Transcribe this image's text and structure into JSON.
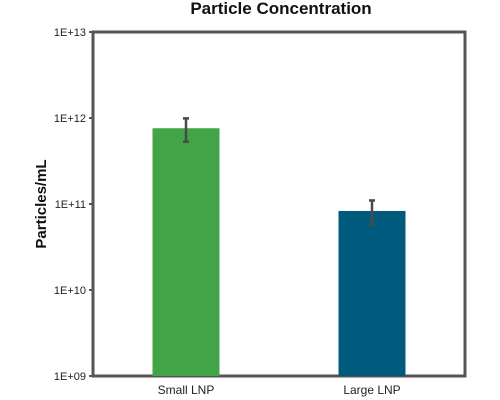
{
  "chart_data": {
    "type": "bar",
    "title": "Particle Concentration",
    "xlabel": "",
    "ylabel": "Particles/mL",
    "yscale": "log",
    "ylim": [
      1000000000,
      10000000000000
    ],
    "yticks": [
      {
        "value": 1000000000,
        "label": "1E+09"
      },
      {
        "value": 10000000000,
        "label": "1E+10"
      },
      {
        "value": 100000000000,
        "label": "1E+11"
      },
      {
        "value": 1000000000000,
        "label": "1E+12"
      },
      {
        "value": 10000000000000,
        "label": "1E+13"
      }
    ],
    "categories": [
      "Small LNP",
      "Large LNP"
    ],
    "values": [
      760000000000,
      83000000000
    ],
    "error_low": [
      530000000000,
      58000000000
    ],
    "error_high": [
      990000000000,
      110000000000
    ],
    "colors": [
      "#41a447",
      "#005a7e"
    ],
    "grid": false,
    "legend": "none"
  }
}
